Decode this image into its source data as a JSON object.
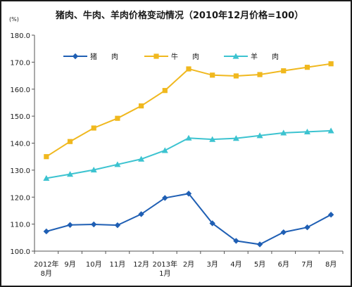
{
  "chart_data": {
    "type": "line",
    "title": "猪肉、牛肉、羊肉价格变动情况（2010年12月价格=100）",
    "unit": "(%)",
    "categories": [
      [
        "2012年",
        "8月"
      ],
      [
        "9月"
      ],
      [
        "10月"
      ],
      [
        "11月"
      ],
      [
        "12月"
      ],
      [
        "2013年",
        "1月"
      ],
      [
        "2月"
      ],
      [
        "3月"
      ],
      [
        "4月"
      ],
      [
        "5月"
      ],
      [
        "6月"
      ],
      [
        "7月"
      ],
      [
        "8月"
      ]
    ],
    "ylim": [
      100,
      180
    ],
    "yticks": [
      "100.0",
      "110.0",
      "120.0",
      "130.0",
      "140.0",
      "150.0",
      "160.0",
      "170.0",
      "180.0"
    ],
    "grid": false,
    "legend_position": "top-left",
    "series": [
      {
        "name": "猪　　肉",
        "color": "#1f5fb4",
        "marker": "diamond",
        "values": [
          107.3,
          109.7,
          109.9,
          109.6,
          113.7,
          119.7,
          121.3,
          110.3,
          103.8,
          102.5,
          107.0,
          108.8,
          113.5
        ]
      },
      {
        "name": "牛　　肉",
        "color": "#f0b81e",
        "marker": "square",
        "values": [
          135.0,
          140.6,
          145.6,
          149.2,
          153.8,
          159.5,
          167.5,
          165.2,
          164.9,
          165.4,
          166.8,
          168.1,
          169.4
        ]
      },
      {
        "name": "羊　　肉",
        "color": "#3cc3d0",
        "marker": "triangle",
        "values": [
          127.0,
          128.5,
          130.1,
          132.1,
          134.1,
          137.3,
          141.9,
          141.4,
          141.8,
          142.8,
          143.8,
          144.2,
          144.6
        ]
      }
    ]
  }
}
